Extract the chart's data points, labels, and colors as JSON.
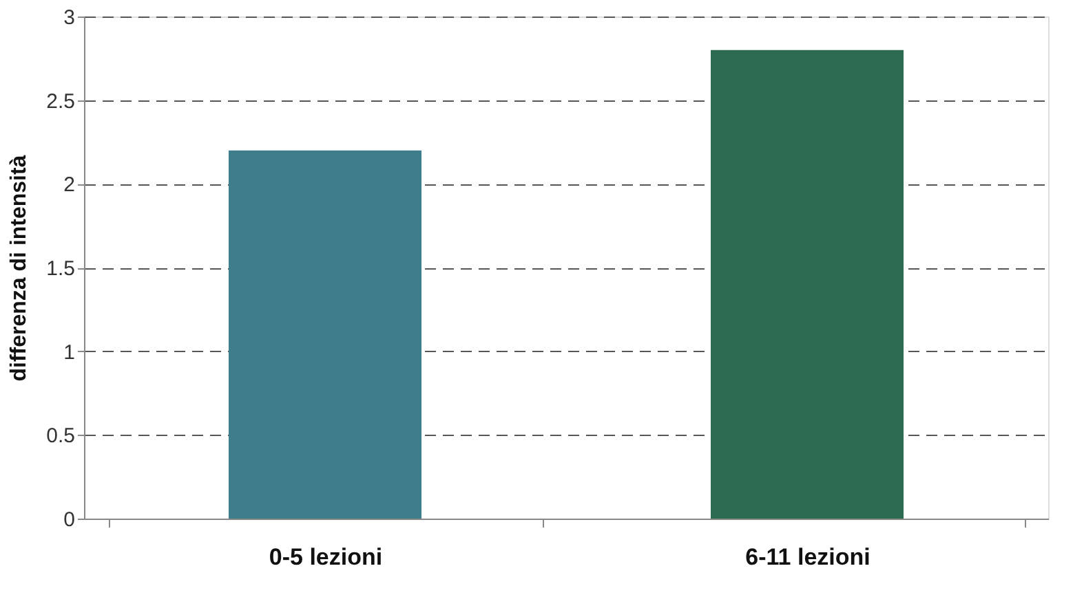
{
  "chart_data": {
    "type": "bar",
    "ylabel": "differenza di intensità",
    "categories": [
      "0-5 lezioni",
      "6-11 lezioni"
    ],
    "values": [
      2.2,
      2.8
    ],
    "colors": [
      "#3e7d8a",
      "#2d6b50"
    ],
    "ylim": [
      0,
      3
    ],
    "yticks": [
      0,
      0.5,
      1,
      1.5,
      2,
      2.5,
      3
    ],
    "grid": "y"
  }
}
